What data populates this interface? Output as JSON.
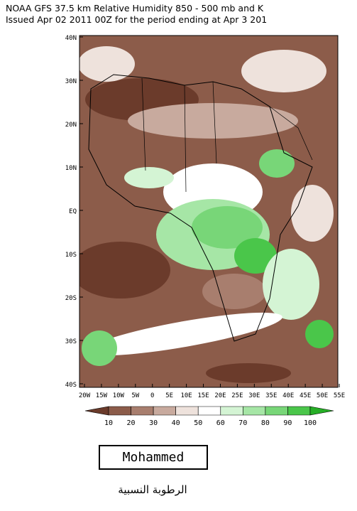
{
  "header": {
    "title_line1": "NOAA GFS 37.5 km Relative Humidity 850 - 500 mb and K",
    "title_line2": "Issued Apr 02 2011 00Z for the period ending at Apr 3 201"
  },
  "map": {
    "lat_labels": [
      "40N",
      "30N",
      "20N",
      "10N",
      "EQ",
      "10S",
      "20S",
      "30S",
      "40S"
    ],
    "lon_labels": [
      "20W",
      "15W",
      "10W",
      "5W",
      "0",
      "5E",
      "10E",
      "15E",
      "20E",
      "25E",
      "30E",
      "35E",
      "40E",
      "45E",
      "50E",
      "55E"
    ]
  },
  "colorbar": {
    "colors": [
      "#6b3b2b",
      "#8c5c4a",
      "#a87e6e",
      "#c8aa9e",
      "#eee2dc",
      "#ffffff",
      "#d4f4d4",
      "#a6e6a6",
      "#78d678",
      "#4ac64a",
      "#26ae26"
    ],
    "labels": [
      10,
      20,
      30,
      40,
      50,
      60,
      70,
      80,
      90,
      100
    ]
  },
  "signature": "Mohammed",
  "caption": "الرطوبة النسبية"
}
